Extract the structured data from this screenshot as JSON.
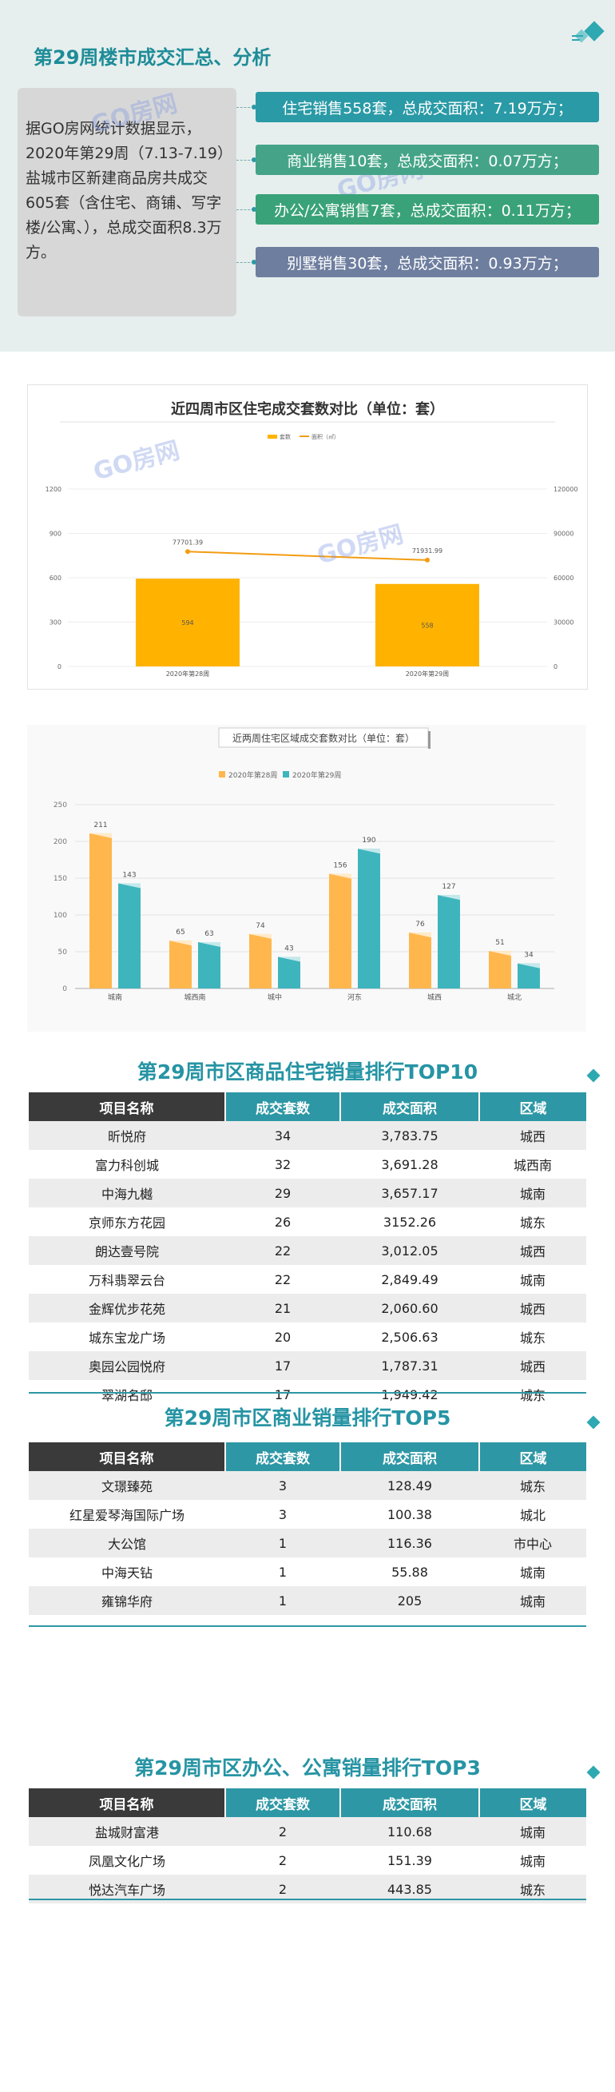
{
  "header": {
    "title": "第29周楼市成交汇总、分析",
    "description": "据GO房网统计数据显示，2020年第29周（7.13-7.19）盐城市区新建商品房共成交605套（含住宅、商铺、写字楼/公寓、），总成交面积8.3万方。",
    "watermark": "GO房网",
    "pills": [
      {
        "text": "住宅销售558套，总成交面积：7.19万方；",
        "color": "#2a9aa6"
      },
      {
        "text": "商业销售10套，总成交面积：0.07万方；",
        "color": "#45a488"
      },
      {
        "text": "办公/公寓销售7套，总成交面积：0.11万方；",
        "color": "#3aa278"
      },
      {
        "text": "别墅销售30套，总成交面积：0.93万方；",
        "color": "#6e7e9f"
      }
    ]
  },
  "chart1": {
    "chart_data": {
      "type": "bar",
      "title": "近四周市区住宅成交套数对比（单位：套）",
      "categories": [
        "2020年第28周",
        "2020年第29周"
      ],
      "series": [
        {
          "name": "套数",
          "type": "bar",
          "values": [
            594,
            558
          ],
          "color": "#ffb300"
        },
        {
          "name": "面积（㎡）",
          "type": "line",
          "values": [
            77701.39,
            71931.99
          ],
          "color": "#f39c12",
          "axis": "right"
        }
      ],
      "ylim_left": [
        0,
        1200
      ],
      "yticks_left": [
        0,
        300,
        600,
        900,
        1200
      ],
      "ylim_right": [
        0,
        120000
      ],
      "yticks_right": [
        0,
        30000,
        60000,
        90000,
        120000
      ],
      "line_labels": [
        "77701.39",
        "71931.99"
      ],
      "legend": "top-center",
      "grid": true
    },
    "watermarks": [
      "GO房网",
      "GO房网"
    ]
  },
  "chart2": {
    "chart_data": {
      "type": "bar",
      "title": "近两周住宅区域成交套数对比（单位：套）",
      "categories": [
        "城南",
        "城西南",
        "城中",
        "河东",
        "城西",
        "城北"
      ],
      "series": [
        {
          "name": "2020年第28周",
          "values": [
            211,
            65,
            74,
            156,
            76,
            51
          ],
          "color": "#ffb74d"
        },
        {
          "name": "2020年第29周",
          "values": [
            143,
            63,
            43,
            190,
            127,
            34
          ],
          "color": "#3eb5bd"
        }
      ],
      "ylim": [
        0,
        250
      ],
      "yticks": [
        0,
        50,
        100,
        150,
        200,
        250
      ],
      "legend": "top-center",
      "grid": true
    }
  },
  "residential": {
    "title": "第29周市区商品住宅销量排行TOP10",
    "headers": [
      "项目名称",
      "成交套数",
      "成交面积",
      "区域"
    ],
    "rows": [
      [
        "昕悦府",
        "34",
        "3,783.75",
        "城西"
      ],
      [
        "富力科创城",
        "32",
        "3,691.28",
        "城西南"
      ],
      [
        "中海九樾",
        "29",
        "3,657.17",
        "城南"
      ],
      [
        "京师东方花园",
        "26",
        "3152.26",
        "城东"
      ],
      [
        "朗达壹号院",
        "22",
        "3,012.05",
        "城西"
      ],
      [
        "万科翡翠云台",
        "22",
        "2,849.49",
        "城南"
      ],
      [
        "金辉优步花苑",
        "21",
        "2,060.60",
        "城西"
      ],
      [
        "城东宝龙广场",
        "20",
        "2,506.63",
        "城东"
      ],
      [
        "奥园公园悦府",
        "17",
        "1,787.31",
        "城西"
      ],
      [
        "翠湖名邸",
        "17",
        "1,949.42",
        "城东"
      ]
    ]
  },
  "commercial": {
    "title": "第29周市区商业销量排行TOP5",
    "headers": [
      "项目名称",
      "成交套数",
      "成交面积",
      "区域"
    ],
    "rows": [
      [
        "文璟臻苑",
        "3",
        "128.49",
        "城东"
      ],
      [
        "红星爱琴海国际广场",
        "3",
        "100.38",
        "城北"
      ],
      [
        "大公馆",
        "1",
        "116.36",
        "市中心"
      ],
      [
        "中海天钻",
        "1",
        "55.88",
        "城南"
      ],
      [
        "雍锦华府",
        "1",
        "205",
        "城南"
      ]
    ]
  },
  "office": {
    "title": "第29周市区办公、公寓销量排行TOP3",
    "headers": [
      "项目名称",
      "成交套数",
      "成交面积",
      "区域"
    ],
    "rows": [
      [
        "盐城财富港",
        "2",
        "110.68",
        "城南"
      ],
      [
        "凤凰文化广场",
        "2",
        "151.39",
        "城南"
      ],
      [
        "悦达汽车广场",
        "2",
        "443.85",
        "城东"
      ]
    ]
  },
  "colors": {
    "teal": "#2a9aa6",
    "header_dark": "#3a3a3a",
    "header_teal": "#2e97a5"
  }
}
